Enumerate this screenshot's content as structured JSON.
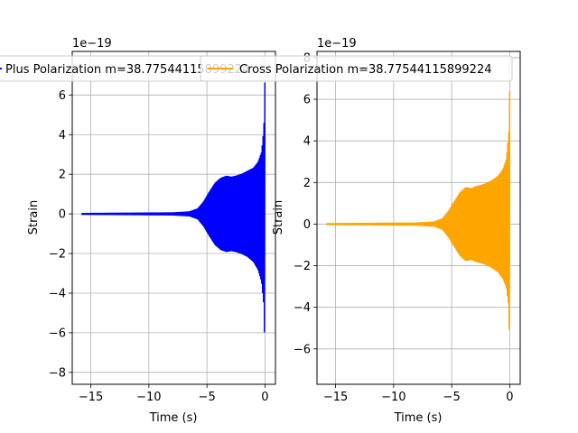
{
  "chart_data": [
    {
      "type": "line",
      "title": "",
      "xlabel": "Time (s)",
      "ylabel": "Strain",
      "offset_text": "1e−19",
      "xlim": [
        -16.6,
        0.9
      ],
      "ylim": [
        -8.6,
        8.2
      ],
      "xticks": [
        -15,
        -10,
        -5,
        0
      ],
      "xtick_labels": [
        "−15",
        "−10",
        "−5",
        "0"
      ],
      "yticks": [
        -8,
        -6,
        -4,
        -2,
        0,
        2,
        4,
        6
      ],
      "ytick_labels": [
        "−8",
        "−6",
        "−4",
        "−2",
        "0",
        "2",
        "4",
        "6"
      ],
      "grid": true,
      "legend": "upper-center",
      "series": [
        {
          "name": "Plus Polarization m=38.77544115899224",
          "color": "#0000ff",
          "envelope": {
            "t": [
              -15.8,
              -8.0,
              -6.5,
              -5.8,
              -5.3,
              -4.8,
              -4.3,
              -3.8,
              -3.3,
              -2.9,
              -2.5,
              -2.0,
              -1.5,
              -1.0,
              -0.6,
              -0.3,
              -0.1,
              -0.03,
              0.0
            ],
            "upper": [
              0.02,
              0.05,
              0.1,
              0.25,
              0.6,
              1.1,
              1.55,
              1.8,
              1.9,
              1.85,
              1.9,
              2.0,
              2.15,
              2.3,
              2.6,
              3.1,
              4.3,
              6.0,
              7.0
            ],
            "lower": [
              -0.02,
              -0.05,
              -0.1,
              -0.25,
              -0.6,
              -1.1,
              -1.55,
              -1.8,
              -1.9,
              -1.85,
              -1.9,
              -2.0,
              -2.15,
              -2.4,
              -2.8,
              -3.4,
              -4.6,
              -6.5,
              -7.8
            ]
          }
        }
      ]
    },
    {
      "type": "line",
      "title": "",
      "xlabel": "Time (s)",
      "ylabel": "Strain",
      "offset_text": "1e−19",
      "xlim": [
        -16.6,
        0.9
      ],
      "ylim": [
        -7.7,
        8.3
      ],
      "xticks": [
        -15,
        -10,
        -5,
        0
      ],
      "xtick_labels": [
        "−15",
        "−10",
        "−5",
        "0"
      ],
      "yticks": [
        -6,
        -4,
        -2,
        0,
        2,
        4,
        6,
        8
      ],
      "ytick_labels": [
        "−6",
        "−4",
        "−2",
        "0",
        "2",
        "4",
        "6",
        "8"
      ],
      "grid": true,
      "legend": "upper-center",
      "series": [
        {
          "name": "Cross Polarization m=38.77544115899224",
          "color": "#ffa500",
          "envelope": {
            "t": [
              -15.8,
              -8.0,
              -6.5,
              -5.8,
              -5.3,
              -4.8,
              -4.3,
              -3.8,
              -3.3,
              -2.9,
              -2.5,
              -2.0,
              -1.5,
              -1.0,
              -0.6,
              -0.3,
              -0.1,
              -0.03,
              0.0
            ],
            "upper": [
              0.02,
              0.05,
              0.1,
              0.25,
              0.6,
              1.05,
              1.5,
              1.75,
              1.7,
              1.8,
              1.85,
              1.95,
              2.1,
              2.3,
              2.6,
              3.1,
              4.3,
              5.0,
              7.2
            ],
            "lower": [
              -0.02,
              -0.05,
              -0.1,
              -0.25,
              -0.6,
              -1.05,
              -1.5,
              -1.75,
              -1.7,
              -1.8,
              -1.85,
              -1.95,
              -2.1,
              -2.3,
              -2.6,
              -3.0,
              -3.9,
              -5.5,
              -7.1
            ]
          }
        }
      ]
    }
  ]
}
